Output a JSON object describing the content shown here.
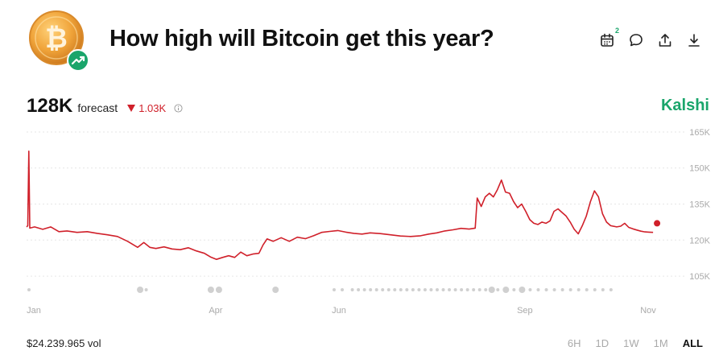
{
  "header": {
    "title": "How high will Bitcoin get this year?",
    "logo_icon": "bitcoin-coin-icon",
    "trend_badge_icon": "trending-up-icon",
    "actions": [
      {
        "icon": "calendar-icon",
        "badge": "2"
      },
      {
        "icon": "comment-icon"
      },
      {
        "icon": "share-icon"
      },
      {
        "icon": "download-icon"
      }
    ]
  },
  "stats": {
    "value": "128K",
    "forecast_label": "forecast",
    "delta": "1.03K",
    "delta_direction": "down",
    "info_icon": "info-icon"
  },
  "brand": "Kalshi",
  "colors": {
    "line": "#d0202a",
    "brand": "#1aa56b",
    "grid": "#e6e6e6",
    "axis_text": "#aaaaaa"
  },
  "chart_data": {
    "type": "line",
    "y_ticks": [
      "165K",
      "150K",
      "135K",
      "120K",
      "105K"
    ],
    "ylim": [
      100000,
      168000
    ],
    "x_ticks": [
      "Jan",
      "Apr",
      "Jun",
      "Sep",
      "Nov"
    ],
    "x_tick_days": [
      0,
      90,
      151,
      243,
      304
    ],
    "xlim": [
      0,
      304
    ],
    "grid": true,
    "series": [
      {
        "values": [
          [
            0,
            125500
          ],
          [
            0.6,
            126000
          ],
          [
            1.1,
            157000
          ],
          [
            1.6,
            125000
          ],
          [
            4,
            125500
          ],
          [
            8,
            124500
          ],
          [
            12,
            125500
          ],
          [
            16,
            123500
          ],
          [
            20,
            123800
          ],
          [
            25,
            123200
          ],
          [
            30,
            123500
          ],
          [
            35,
            122800
          ],
          [
            40,
            122200
          ],
          [
            45,
            121500
          ],
          [
            50,
            119500
          ],
          [
            55,
            117000
          ],
          [
            58,
            119000
          ],
          [
            61,
            117000
          ],
          [
            64,
            116500
          ],
          [
            68,
            117200
          ],
          [
            72,
            116300
          ],
          [
            76,
            116000
          ],
          [
            80,
            116800
          ],
          [
            84,
            115500
          ],
          [
            88,
            114500
          ],
          [
            91,
            113000
          ],
          [
            94,
            112000
          ],
          [
            97,
            112800
          ],
          [
            100,
            113500
          ],
          [
            103,
            112800
          ],
          [
            106,
            115000
          ],
          [
            109,
            113500
          ],
          [
            112,
            114200
          ],
          [
            115,
            114500
          ],
          [
            117,
            118000
          ],
          [
            119,
            120500
          ],
          [
            122,
            119500
          ],
          [
            126,
            121000
          ],
          [
            130,
            119500
          ],
          [
            134,
            121200
          ],
          [
            138,
            120600
          ],
          [
            142,
            121800
          ],
          [
            146,
            123200
          ],
          [
            150,
            123600
          ],
          [
            154,
            124000
          ],
          [
            158,
            123300
          ],
          [
            162,
            122800
          ],
          [
            166,
            122500
          ],
          [
            170,
            123000
          ],
          [
            175,
            122700
          ],
          [
            180,
            122200
          ],
          [
            185,
            121700
          ],
          [
            190,
            121500
          ],
          [
            195,
            121800
          ],
          [
            199,
            122500
          ],
          [
            203,
            123000
          ],
          [
            207,
            123800
          ],
          [
            211,
            124300
          ],
          [
            215,
            124900
          ],
          [
            219,
            124600
          ],
          [
            222,
            125000
          ],
          [
            223,
            137500
          ],
          [
            225,
            134000
          ],
          [
            227,
            138000
          ],
          [
            229,
            139500
          ],
          [
            231,
            138000
          ],
          [
            233,
            141000
          ],
          [
            235,
            145000
          ],
          [
            237,
            140000
          ],
          [
            239,
            139500
          ],
          [
            241,
            136000
          ],
          [
            243,
            133500
          ],
          [
            245,
            135000
          ],
          [
            247,
            132000
          ],
          [
            249,
            128500
          ],
          [
            251,
            127000
          ],
          [
            253,
            126500
          ],
          [
            255,
            127500
          ],
          [
            257,
            127000
          ],
          [
            259,
            128000
          ],
          [
            261,
            132000
          ],
          [
            263,
            133000
          ],
          [
            265,
            131500
          ],
          [
            267,
            130000
          ],
          [
            269,
            127500
          ],
          [
            271,
            124500
          ],
          [
            273,
            122600
          ],
          [
            275,
            126000
          ],
          [
            277,
            130000
          ],
          [
            279,
            136000
          ],
          [
            281,
            140500
          ],
          [
            283,
            138000
          ],
          [
            285,
            131000
          ],
          [
            287,
            127500
          ],
          [
            289,
            126000
          ],
          [
            292,
            125500
          ],
          [
            294,
            125800
          ],
          [
            296,
            127000
          ],
          [
            298,
            125300
          ],
          [
            300,
            124700
          ],
          [
            302,
            124200
          ],
          [
            304,
            123700
          ],
          [
            306,
            123400
          ],
          [
            308,
            123300
          ],
          [
            310,
            123200
          ]
        ],
        "current": [
          312,
          127000
        ]
      }
    ],
    "timeline_markers": [
      0,
      55,
      58,
      90,
      94,
      122,
      151,
      155,
      160,
      163,
      166,
      169,
      172,
      175,
      178,
      181,
      184,
      187,
      190,
      193,
      196,
      199,
      202,
      205,
      208,
      211,
      214,
      217,
      220,
      223,
      226,
      229,
      232,
      236,
      240,
      244,
      248,
      252,
      256,
      260,
      264,
      268,
      272,
      276,
      280,
      284,
      288
    ]
  },
  "footer": {
    "volume": "$24.239.965 vol",
    "ranges": [
      {
        "label": "6H",
        "active": false
      },
      {
        "label": "1D",
        "active": false
      },
      {
        "label": "1W",
        "active": false
      },
      {
        "label": "1M",
        "active": false
      },
      {
        "label": "ALL",
        "active": true
      }
    ]
  }
}
